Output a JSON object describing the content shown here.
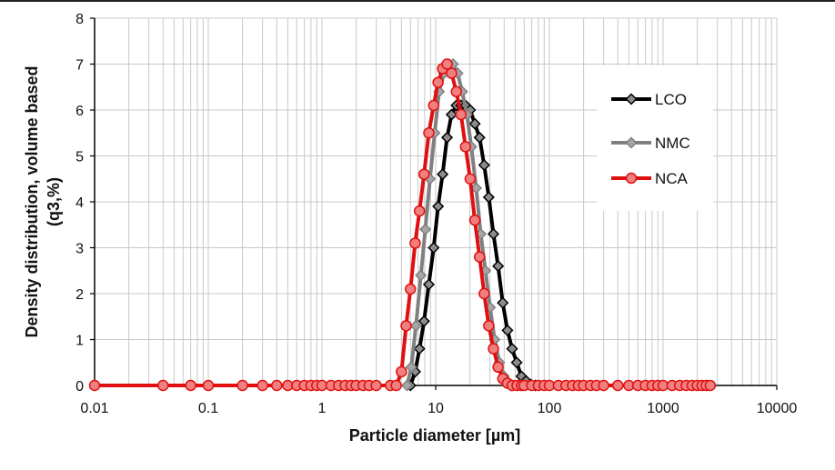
{
  "chart_data": {
    "type": "line",
    "title": "",
    "xlabel": "Particle diameter [µm]",
    "ylabel_line1": "Density distribution, volume based",
    "ylabel_line2": "(q3,%)",
    "x_scale": "log",
    "xlim": [
      0.01,
      10000
    ],
    "ylim": [
      0,
      8
    ],
    "x_ticks": [
      0.01,
      0.1,
      1,
      10,
      100,
      1000,
      10000
    ],
    "x_tick_labels": [
      "0.01",
      "0.1",
      "1",
      "10",
      "100",
      "1000",
      "10000"
    ],
    "y_ticks": [
      0,
      1,
      2,
      3,
      4,
      5,
      6,
      7,
      8
    ],
    "y_tick_labels": [
      "0",
      "1",
      "2",
      "3",
      "4",
      "5",
      "6",
      "7",
      "8"
    ],
    "grid": true,
    "legend_position": "top-right",
    "colors": {
      "LCO": "#000000",
      "NMC": "#808080",
      "NCA": "#e01010"
    },
    "series": [
      {
        "name": "LCO",
        "marker_fill": "#8c8c8c",
        "x": [
          6.0,
          6.6,
          7.2,
          7.9,
          8.7,
          9.6,
          10.5,
          11.5,
          12.6,
          13.8,
          15.2,
          16.7,
          18.3,
          20.1,
          22.1,
          24.3,
          26.7,
          29.3,
          32.2,
          35.4,
          38.9,
          42.8,
          47.0,
          51.6,
          56.7,
          62.3,
          68.5,
          75.3
        ],
        "y": [
          0.0,
          0.3,
          0.8,
          1.4,
          2.2,
          3.0,
          3.9,
          4.6,
          5.4,
          5.9,
          6.1,
          6.1,
          6.1,
          6.0,
          5.7,
          5.4,
          4.8,
          4.1,
          3.3,
          2.6,
          1.8,
          1.2,
          0.8,
          0.5,
          0.2,
          0.1,
          0.02,
          0.0
        ]
      },
      {
        "name": "NMC",
        "marker_fill": "#a6a6a6",
        "x": [
          5.6,
          6.1,
          6.7,
          7.4,
          8.1,
          8.9,
          9.8,
          10.7,
          11.8,
          12.9,
          14.2,
          15.6,
          17.1,
          18.8,
          20.6,
          22.7,
          24.9,
          27.4,
          30.1,
          33.0,
          36.3,
          39.9,
          43.8,
          48.1
        ],
        "y": [
          0.0,
          0.4,
          1.3,
          2.4,
          3.4,
          4.5,
          5.5,
          6.4,
          6.8,
          7.0,
          7.0,
          6.8,
          6.4,
          5.9,
          5.2,
          4.3,
          3.3,
          2.5,
          1.7,
          1.0,
          0.5,
          0.2,
          0.05,
          0.0
        ]
      },
      {
        "name": "NCA",
        "marker_fill": "#f08080",
        "x": [
          0.01,
          0.04,
          0.07,
          0.1,
          0.2,
          0.3,
          0.4,
          0.5,
          0.6,
          0.7,
          0.8,
          0.9,
          1.0,
          1.2,
          1.4,
          1.6,
          1.8,
          2.0,
          2.3,
          2.6,
          3.0,
          4.0,
          4.5,
          5.0,
          5.5,
          6.0,
          6.6,
          7.2,
          7.9,
          8.7,
          9.6,
          10.5,
          11.5,
          12.6,
          13.8,
          15.2,
          16.7,
          18.3,
          20.1,
          22.1,
          24.3,
          26.7,
          29.3,
          32.2,
          35.4,
          38.9,
          42.8,
          47,
          52,
          57,
          60,
          70,
          80,
          90,
          100,
          120,
          140,
          160,
          180,
          200,
          230,
          260,
          300,
          400,
          500,
          600,
          700,
          800,
          900,
          1000,
          1200,
          1400,
          1600,
          1800,
          2000,
          2200,
          2400,
          2600
        ],
        "y": [
          0,
          0,
          0,
          0,
          0,
          0,
          0,
          0,
          0,
          0,
          0,
          0,
          0,
          0,
          0,
          0,
          0,
          0,
          0,
          0,
          0,
          0,
          0.0,
          0.3,
          1.3,
          2.1,
          3.1,
          3.8,
          4.6,
          5.5,
          6.1,
          6.6,
          6.9,
          7.0,
          6.8,
          6.4,
          5.9,
          5.2,
          4.5,
          3.6,
          2.8,
          2.0,
          1.3,
          0.8,
          0.4,
          0.15,
          0.05,
          0,
          0,
          0,
          0,
          0,
          0,
          0,
          0,
          0,
          0,
          0,
          0,
          0,
          0,
          0,
          0,
          0,
          0,
          0,
          0,
          0,
          0,
          0,
          0,
          0,
          0,
          0,
          0,
          0,
          0,
          0
        ]
      }
    ]
  }
}
